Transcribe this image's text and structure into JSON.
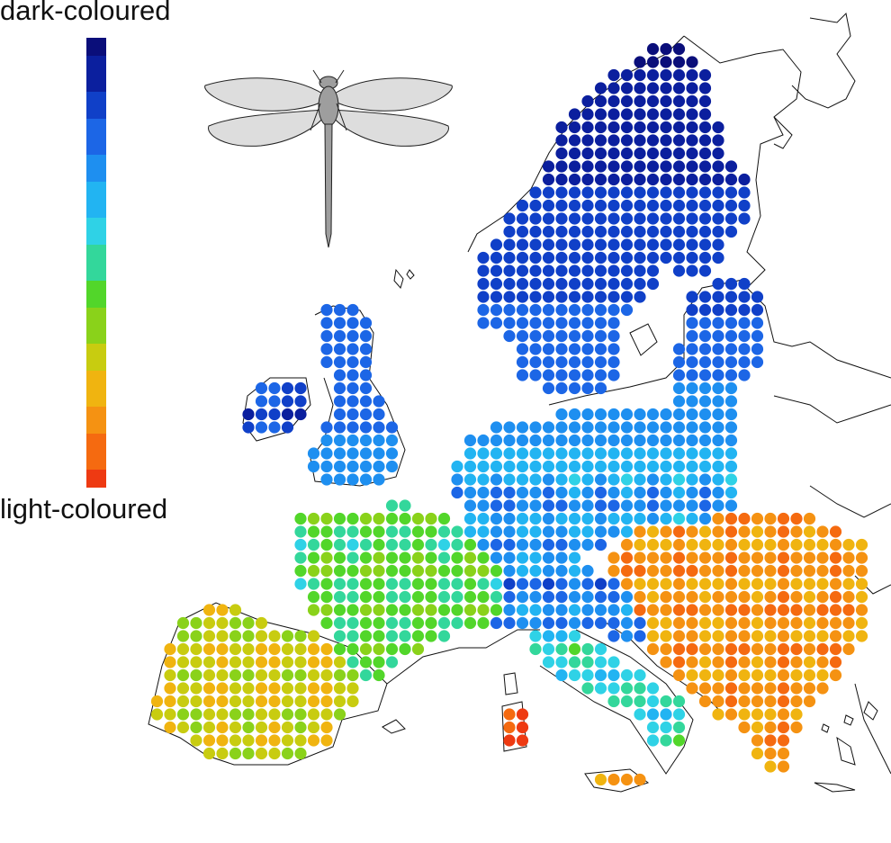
{
  "legend": {
    "top_label": "dark-coloured",
    "bottom_label": "light-coloured",
    "scale_colors": [
      "#0a0e7a",
      "#0b1f9e",
      "#1040c8",
      "#1c66e6",
      "#1e8ff0",
      "#22b4f2",
      "#2fd2e6",
      "#33d79b",
      "#52d62a",
      "#8ad21a",
      "#c8cc10",
      "#f0b410",
      "#f59212",
      "#f56a10",
      "#ee3a12"
    ]
  },
  "map_regions": [
    {
      "name": "Scandinavia",
      "level": 0.05
    },
    {
      "name": "Finland",
      "level": 0.1
    },
    {
      "name": "Baltic states",
      "level": 0.22
    },
    {
      "name": "British Isles",
      "level": 0.12
    },
    {
      "name": "Central Europe",
      "level": 0.35
    },
    {
      "name": "France",
      "level": 0.55
    },
    {
      "name": "Iberia",
      "level": 0.7
    },
    {
      "name": "Italy",
      "level": 0.45
    },
    {
      "name": "Balkans",
      "level": 0.85
    },
    {
      "name": "Sardinia",
      "level": 0.95
    }
  ]
}
